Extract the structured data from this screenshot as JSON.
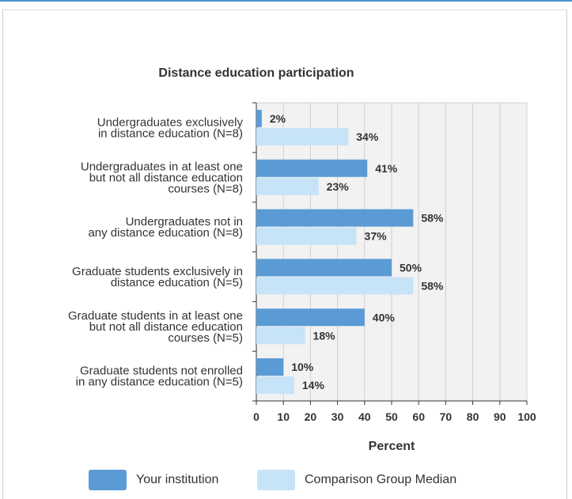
{
  "colors": {
    "institution": "#5b9bd5",
    "comparison": "#c7e3f7",
    "grid": "#cfcfcf",
    "plot_bg": "#f2f2f2",
    "text": "#333333"
  },
  "chart_data": {
    "type": "bar",
    "orientation": "horizontal",
    "title": "Distance education participation",
    "xlabel": "Percent",
    "ylabel": "",
    "xlim": [
      0,
      100
    ],
    "xticks": [
      "0",
      "10",
      "20",
      "30",
      "40",
      "50",
      "60",
      "70",
      "80",
      "90",
      "100"
    ],
    "grid": true,
    "legend_position": "bottom",
    "categories": [
      [
        "Undergraduates exclusively",
        "in distance education (N=8)"
      ],
      [
        "Undergraduates in at least one",
        "but not all distance education",
        "courses (N=8)"
      ],
      [
        "Undergraduates not in",
        "any distance education (N=8)"
      ],
      [
        "Graduate students exclusively in",
        "distance education (N=5)"
      ],
      [
        "Graduate students in at least one",
        "but not all distance education",
        "courses (N=5)"
      ],
      [
        "Graduate students not enrolled",
        "in any distance education (N=5)"
      ]
    ],
    "series": [
      {
        "name": "Your institution",
        "color": "#5b9bd5",
        "values": [
          2,
          41,
          58,
          50,
          40,
          10
        ],
        "labels": [
          "2%",
          "41%",
          "58%",
          "50%",
          "40%",
          "10%"
        ]
      },
      {
        "name": "Comparison Group Median",
        "color": "#c7e3f7",
        "values": [
          34,
          23,
          37,
          58,
          18,
          14
        ],
        "labels": [
          "34%",
          "23%",
          "37%",
          "58%",
          "18%",
          "14%"
        ]
      }
    ]
  }
}
